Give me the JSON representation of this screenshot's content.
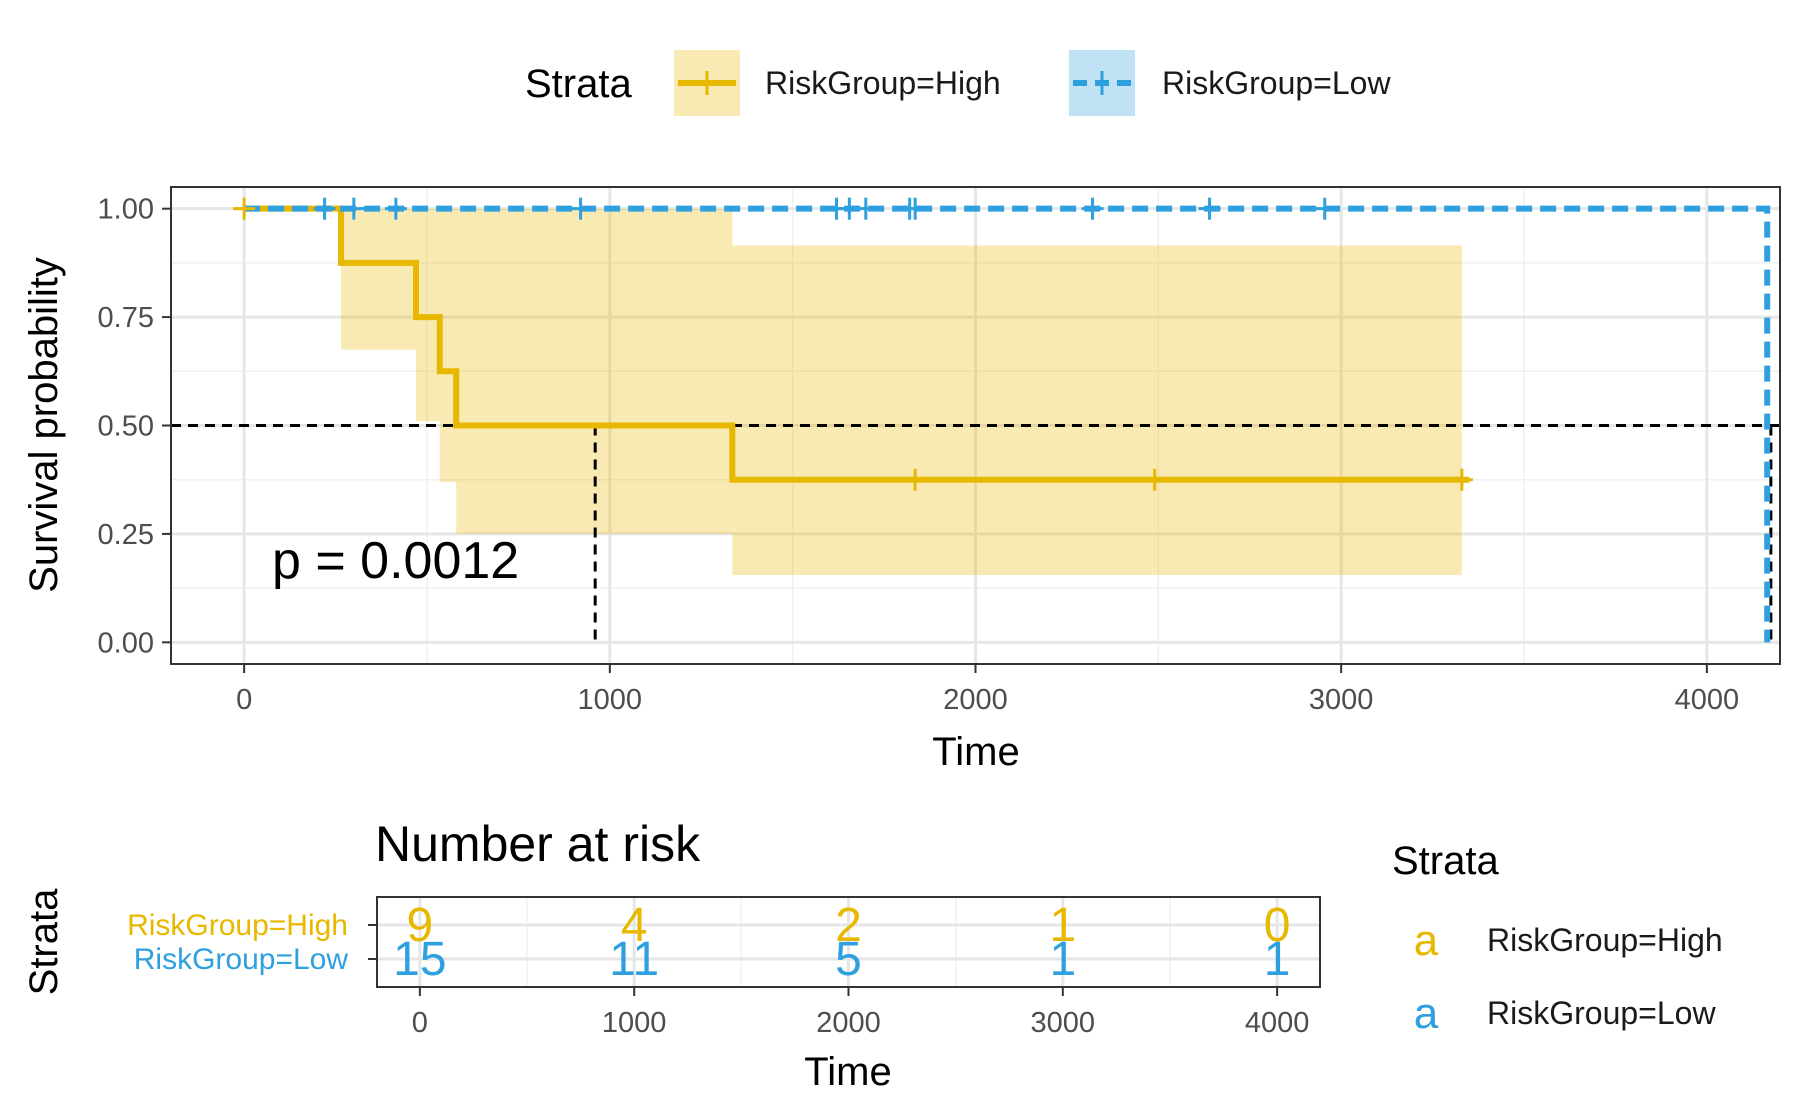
{
  "legend": {
    "title": "Strata",
    "items": [
      {
        "label": "RiskGroup=High",
        "color": "#E7B800",
        "line": "solid"
      },
      {
        "label": "RiskGroup=Low",
        "color": "#2E9FDF",
        "line": "dashed"
      }
    ]
  },
  "annotation": {
    "pvalue": "p = 0.0012"
  },
  "chart_data": [
    {
      "type": "line",
      "subtype": "kaplan-meier",
      "title": "",
      "xlabel": "Time",
      "ylabel": "Survival probability",
      "xlim": [
        -200,
        4200
      ],
      "ylim": [
        -0.05,
        1.05
      ],
      "xticks": [
        0,
        1000,
        2000,
        3000,
        4000
      ],
      "xtick_labels": [
        "0",
        "1000",
        "2000",
        "3000",
        "4000"
      ],
      "yticks": [
        0,
        0.25,
        0.5,
        0.75,
        1
      ],
      "ytick_labels": [
        "0.00",
        "0.25",
        "0.50",
        "0.75",
        "1.00"
      ],
      "grid": true,
      "legend_position": "top",
      "series": [
        {
          "name": "RiskGroup=High",
          "color": "#E7B800",
          "line": "solid",
          "steps": [
            [
              0,
              1.0
            ],
            [
              265,
              0.875
            ],
            [
              470,
              0.75
            ],
            [
              535,
              0.625
            ],
            [
              580,
              0.5
            ],
            [
              1335,
              0.375
            ],
            [
              3350,
              0.375
            ]
          ],
          "ci": [
            {
              "x0": 0,
              "x1": 265,
              "lower": 1.0,
              "upper": 1.0
            },
            {
              "x0": 265,
              "x1": 470,
              "lower": 0.675,
              "upper": 1.0
            },
            {
              "x0": 470,
              "x1": 535,
              "lower": 0.51,
              "upper": 1.0
            },
            {
              "x0": 535,
              "x1": 580,
              "lower": 0.37,
              "upper": 1.0
            },
            {
              "x0": 580,
              "x1": 1335,
              "lower": 0.25,
              "upper": 1.0
            },
            {
              "x0": 1335,
              "x1": 3330,
              "lower": 0.155,
              "upper": 0.915
            }
          ],
          "censor": [
            {
              "x": 0,
              "y": 1.0
            },
            {
              "x": 1835,
              "y": 0.375
            },
            {
              "x": 2490,
              "y": 0.375
            },
            {
              "x": 3330,
              "y": 0.375
            }
          ]
        },
        {
          "name": "RiskGroup=Low",
          "color": "#2E9FDF",
          "line": "dashed",
          "steps": [
            [
              0,
              1.0
            ],
            [
              4165,
              1.0
            ],
            [
              4165,
              0.0
            ]
          ],
          "censor": [
            {
              "x": 220,
              "y": 1.0
            },
            {
              "x": 300,
              "y": 1.0
            },
            {
              "x": 415,
              "y": 1.0
            },
            {
              "x": 920,
              "y": 1.0
            },
            {
              "x": 1620,
              "y": 1.0
            },
            {
              "x": 1655,
              "y": 1.0
            },
            {
              "x": 1700,
              "y": 1.0
            },
            {
              "x": 1820,
              "y": 1.0
            },
            {
              "x": 1835,
              "y": 1.0
            },
            {
              "x": 2320,
              "y": 1.0
            },
            {
              "x": 2640,
              "y": 1.0
            },
            {
              "x": 2955,
              "y": 1.0
            }
          ]
        }
      ],
      "reference_lines": [
        {
          "from": [
            -200,
            0.5
          ],
          "to": [
            4200,
            0.5
          ]
        },
        {
          "from": [
            960,
            0.5
          ],
          "to": [
            960,
            0.0
          ]
        },
        {
          "from": [
            4175,
            0.5
          ],
          "to": [
            4175,
            0.0
          ]
        }
      ]
    },
    {
      "type": "table",
      "title": "Number at risk",
      "xlabel": "Time",
      "ylabel": "Strata",
      "xlim": [
        -200,
        4200
      ],
      "xticks": [
        0,
        1000,
        2000,
        3000,
        4000
      ],
      "xtick_labels": [
        "0",
        "1000",
        "2000",
        "3000",
        "4000"
      ],
      "rows": [
        {
          "name": "RiskGroup=High",
          "color": "#E7B800",
          "values": [
            "9",
            "4",
            "2",
            "1",
            "0"
          ]
        },
        {
          "name": "RiskGroup=Low",
          "color": "#2E9FDF",
          "values": [
            "15",
            "11",
            "5",
            "1",
            "1"
          ]
        }
      ],
      "legend": {
        "title": "Strata",
        "key": "a"
      }
    }
  ]
}
